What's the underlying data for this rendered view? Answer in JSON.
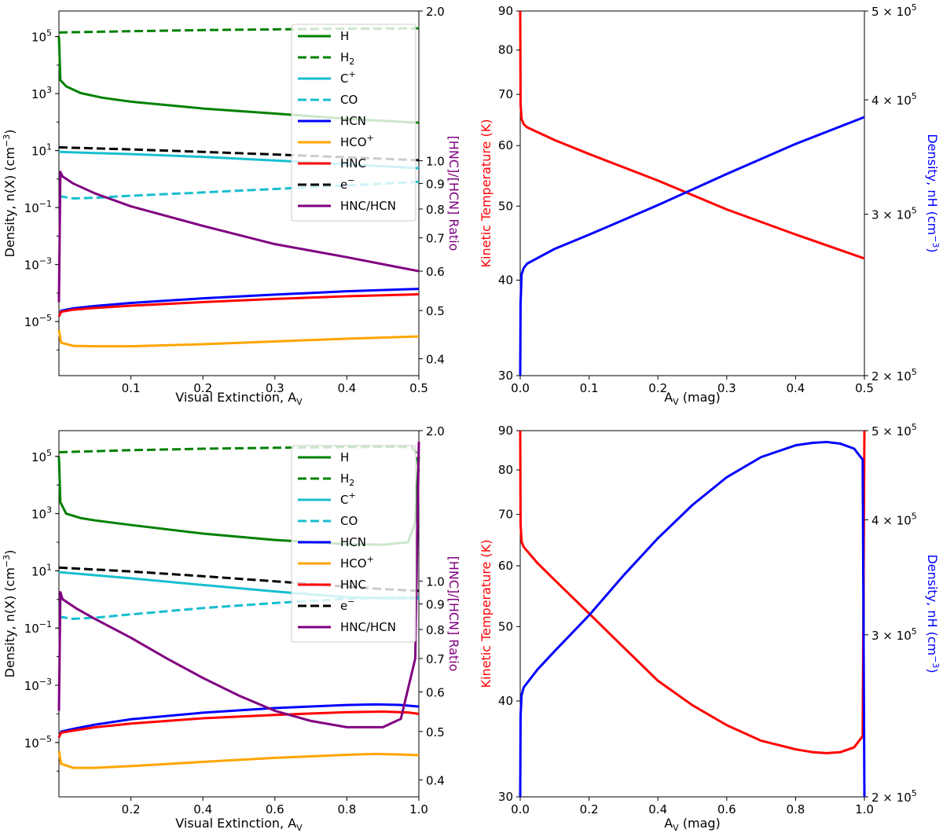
{
  "chart_data": [
    {
      "panel": "top-left",
      "type": "line",
      "xlabel": "Visual Extinction, A",
      "xlabel_sub": "V",
      "ylabel": "Density, n(X) (cm",
      "ylabel_sup": "−3",
      "ylabel_tail": ")",
      "y2label": "[HNC]/[HCN] Ratio",
      "x_scale": "linear",
      "xlim": [
        0,
        0.5
      ],
      "x_ticks": [
        0.1,
        0.2,
        0.3,
        0.4,
        0.5
      ],
      "x_tick_labels": [
        "0.1",
        "0.2",
        "0.3",
        "0.4",
        "0.5"
      ],
      "y_scale": "log",
      "ylim_log10": [
        -6.9,
        5.9
      ],
      "y_ticks": [
        {
          "base": "10",
          "exp": "5",
          "log": 5
        },
        {
          "base": "10",
          "exp": "3",
          "log": 3
        },
        {
          "base": "10",
          "exp": "1",
          "log": 1
        },
        {
          "base": "10",
          "exp": "−1",
          "log": -1
        },
        {
          "base": "10",
          "exp": "−3",
          "log": -3
        },
        {
          "base": "10",
          "exp": "−5",
          "log": -5
        }
      ],
      "y2_scale": "log",
      "y2lim": [
        0.37,
        2.0
      ],
      "y2_ticks": [
        0.4,
        0.5,
        0.6,
        0.7,
        0.8,
        0.9,
        1.0,
        2.0
      ],
      "y2_tick_labels": [
        "0.4",
        "0.5",
        "0.6",
        "0.7",
        "0.8",
        "0.9",
        "1.0",
        "2.0"
      ],
      "legend_position": "top-right",
      "series": [
        {
          "name": "H",
          "label": "H",
          "color": "#008000",
          "style": "solid",
          "axis": "left",
          "x": [
            0,
            0.002,
            0.01,
            0.03,
            0.06,
            0.1,
            0.2,
            0.3,
            0.4,
            0.5
          ],
          "y": [
            100000.0,
            3000,
            1800,
            1050,
            720,
            520,
            300,
            200,
            130,
            95
          ]
        },
        {
          "name": "H2",
          "label": "H",
          "sub": "2",
          "color": "#008000",
          "style": "dashed",
          "axis": "left",
          "x": [
            0,
            0.1,
            0.2,
            0.3,
            0.4,
            0.5
          ],
          "y": [
            140000,
            155000,
            170000,
            180000,
            190000,
            195000
          ]
        },
        {
          "name": "C+",
          "label": "C",
          "sup": "+",
          "color": "#17becf",
          "style": "solid",
          "axis": "left",
          "x": [
            0,
            0.1,
            0.2,
            0.3,
            0.4,
            0.5
          ],
          "y": [
            9,
            7.5,
            6,
            4.5,
            3.3,
            2.4
          ]
        },
        {
          "name": "CO",
          "label": "CO",
          "color": "#17becf",
          "style": "dashed",
          "axis": "left",
          "x": [
            0,
            0.02,
            0.05,
            0.1,
            0.2,
            0.3,
            0.4,
            0.5
          ],
          "y": [
            0.25,
            0.21,
            0.22,
            0.26,
            0.34,
            0.45,
            0.6,
            0.8
          ]
        },
        {
          "name": "HCN",
          "label": "HCN",
          "color": "#0000ff",
          "style": "solid",
          "axis": "left",
          "x": [
            0,
            0.003,
            0.02,
            0.05,
            0.1,
            0.2,
            0.3,
            0.4,
            0.5
          ],
          "y": [
            1.5e-05,
            2.4e-05,
            2.9e-05,
            3.5e-05,
            4.5e-05,
            6.5e-05,
            8.8e-05,
            0.000115,
            0.00014
          ]
        },
        {
          "name": "HCO+",
          "label": "HCO",
          "sup": "+",
          "color": "#ffa500",
          "style": "solid",
          "axis": "left",
          "x": [
            0,
            0.003,
            0.02,
            0.05,
            0.1,
            0.2,
            0.3,
            0.4,
            0.5
          ],
          "y": [
            5e-06,
            1.8e-06,
            1.4e-06,
            1.35e-06,
            1.35e-06,
            1.6e-06,
            2e-06,
            2.5e-06,
            3e-06
          ]
        },
        {
          "name": "HNC",
          "label": "HNC",
          "color": "#ff0000",
          "style": "solid",
          "axis": "left",
          "x": [
            0,
            0.003,
            0.02,
            0.05,
            0.1,
            0.2,
            0.3,
            0.4,
            0.5
          ],
          "y": [
            1.5e-05,
            2.2e-05,
            2.6e-05,
            3e-05,
            3.6e-05,
            4.8e-05,
            6.2e-05,
            7.7e-05,
            9e-05
          ]
        },
        {
          "name": "e-",
          "label": "e",
          "sup": "−",
          "color": "#000000",
          "style": "dashed",
          "axis": "left",
          "x": [
            0,
            0.1,
            0.2,
            0.3,
            0.4,
            0.5
          ],
          "y": [
            13,
            11,
            9,
            7.3,
            5.8,
            4.6
          ]
        },
        {
          "name": "HNC/HCN",
          "label": "HNC/HCN",
          "color": "#800080",
          "style": "solid",
          "axis": "right",
          "x": [
            0,
            0.002,
            0.005,
            0.02,
            0.05,
            0.1,
            0.2,
            0.3,
            0.4,
            0.5
          ],
          "y": [
            0.52,
            0.95,
            0.93,
            0.9,
            0.86,
            0.81,
            0.74,
            0.68,
            0.64,
            0.6
          ]
        }
      ]
    },
    {
      "panel": "top-right",
      "type": "line",
      "xlabel": "A",
      "xlabel_sub": "V",
      "xlabel_tail": " (mag)",
      "ylabel": "Kinetic Temperature (K)",
      "y2label": "Density, nH (cm",
      "y2label_sup": "−3",
      "y2label_tail": ")",
      "x_scale": "linear",
      "xlim": [
        0,
        0.5
      ],
      "x_ticks": [
        0,
        0.1,
        0.2,
        0.3,
        0.4,
        0.5
      ],
      "x_tick_labels": [
        "0.0",
        "0.1",
        "0.2",
        "0.3",
        "0.4",
        "0.5"
      ],
      "y_scale": "log",
      "ylim": [
        30,
        90
      ],
      "y_ticks": [
        30,
        40,
        50,
        60,
        70,
        80,
        90
      ],
      "y_tick_labels": [
        "30",
        "40",
        "50",
        "60",
        "70",
        "80",
        "90"
      ],
      "y2_scale": "log",
      "y2lim": [
        200000,
        500000
      ],
      "y2_ticks": [
        {
          "value": 200000,
          "mant": "2",
          "base": "10",
          "exp": "5"
        },
        {
          "value": 300000,
          "mant": "3",
          "base": "10",
          "exp": "5"
        },
        {
          "value": 400000,
          "mant": "4",
          "base": "10",
          "exp": "5"
        },
        {
          "value": 500000,
          "mant": "5",
          "base": "10",
          "exp": "5"
        }
      ],
      "series": [
        {
          "name": "Kinetic Temperature",
          "color": "#ff0000",
          "style": "solid",
          "axis": "left",
          "x": [
            0,
            0.0005,
            0.002,
            0.005,
            0.01,
            0.05,
            0.1,
            0.2,
            0.3,
            0.4,
            0.5
          ],
          "y": [
            90,
            68,
            65,
            64,
            63.4,
            61,
            58.5,
            54,
            49.5,
            45.9,
            42.7
          ]
        },
        {
          "name": "Density nH",
          "color": "#0000ff",
          "style": "solid",
          "axis": "right",
          "x": [
            0,
            0.0005,
            0.002,
            0.005,
            0.01,
            0.05,
            0.1,
            0.2,
            0.3,
            0.4,
            0.5
          ],
          "y": [
            200000,
            240000,
            258000,
            262000,
            265000,
            275000,
            285000,
            307000,
            332000,
            358000,
            383000
          ]
        }
      ]
    },
    {
      "panel": "bottom-left",
      "type": "line",
      "xlabel": "Visual Extinction, A",
      "xlabel_sub": "V",
      "ylabel": "Density, n(X) (cm",
      "ylabel_sup": "−3",
      "ylabel_tail": ")",
      "y2label": "[HNC]/[HCN] Ratio",
      "x_scale": "linear",
      "xlim": [
        0,
        1.0
      ],
      "x_ticks": [
        0.2,
        0.4,
        0.6,
        0.8,
        1.0
      ],
      "x_tick_labels": [
        "0.2",
        "0.4",
        "0.6",
        "0.8",
        "1.0"
      ],
      "y_scale": "log",
      "ylim_log10": [
        -6.9,
        5.9
      ],
      "y_ticks": [
        {
          "base": "10",
          "exp": "5",
          "log": 5
        },
        {
          "base": "10",
          "exp": "3",
          "log": 3
        },
        {
          "base": "10",
          "exp": "1",
          "log": 1
        },
        {
          "base": "10",
          "exp": "−1",
          "log": -1
        },
        {
          "base": "10",
          "exp": "−3",
          "log": -3
        },
        {
          "base": "10",
          "exp": "−5",
          "log": -5
        }
      ],
      "y2_scale": "log",
      "y2lim": [
        0.37,
        2.0
      ],
      "y2_ticks": [
        0.4,
        0.5,
        0.6,
        0.7,
        0.8,
        0.9,
        1.0,
        2.0
      ],
      "y2_tick_labels": [
        "0.4",
        "0.5",
        "0.6",
        "0.7",
        "0.8",
        "0.9",
        "1.0",
        "2.0"
      ],
      "legend_position": "top-right",
      "series": [
        {
          "name": "H",
          "label": "H",
          "color": "#008000",
          "style": "solid",
          "axis": "left",
          "x": [
            0,
            0.004,
            0.02,
            0.06,
            0.1,
            0.2,
            0.4,
            0.6,
            0.8,
            0.9,
            0.97,
            0.99,
            1.0
          ],
          "y": [
            100000.0,
            2500,
            1000,
            700,
            580,
            400,
            200,
            120,
            85,
            82,
            100,
            500,
            100000
          ]
        },
        {
          "name": "H2",
          "label": "H",
          "sub": "2",
          "color": "#008000",
          "style": "dashed",
          "axis": "left",
          "x": [
            0,
            0.2,
            0.4,
            0.6,
            0.8,
            0.9,
            0.98,
            0.995,
            1.0
          ],
          "y": [
            140000,
            165000,
            185000,
            200000,
            212000,
            215000,
            214000,
            120000,
            30000
          ]
        },
        {
          "name": "C+",
          "label": "C",
          "sup": "+",
          "color": "#17becf",
          "style": "solid",
          "axis": "left",
          "x": [
            0,
            0.2,
            0.4,
            0.6,
            0.8,
            0.9,
            1.0
          ],
          "y": [
            9,
            5.5,
            3.2,
            1.9,
            1.2,
            1.1,
            1.1
          ]
        },
        {
          "name": "CO",
          "label": "CO",
          "color": "#17becf",
          "style": "dashed",
          "axis": "left",
          "x": [
            0,
            0.04,
            0.1,
            0.2,
            0.4,
            0.6,
            0.8,
            0.9,
            1.0
          ],
          "y": [
            0.25,
            0.21,
            0.23,
            0.3,
            0.5,
            0.75,
            1.05,
            1.15,
            1.2
          ]
        },
        {
          "name": "HCN",
          "label": "HCN",
          "color": "#0000ff",
          "style": "solid",
          "axis": "left",
          "x": [
            0,
            0.006,
            0.04,
            0.1,
            0.2,
            0.4,
            0.6,
            0.8,
            0.88,
            0.95,
            1.0
          ],
          "y": [
            1.5e-05,
            2.4e-05,
            3e-05,
            4.2e-05,
            6.5e-05,
            0.00011,
            0.00016,
            0.000205,
            0.000215,
            0.000205,
            0.00018
          ]
        },
        {
          "name": "HCO+",
          "label": "HCO",
          "sup": "+",
          "color": "#ffa500",
          "style": "solid",
          "axis": "left",
          "x": [
            0,
            0.006,
            0.04,
            0.1,
            0.2,
            0.4,
            0.6,
            0.8,
            0.88,
            0.95,
            1.0
          ],
          "y": [
            5e-06,
            1.8e-06,
            1.3e-06,
            1.3e-06,
            1.5e-06,
            2.1e-06,
            2.9e-06,
            3.7e-06,
            4e-06,
            3.8e-06,
            3.6e-06
          ]
        },
        {
          "name": "HNC",
          "label": "HNC",
          "color": "#ff0000",
          "style": "solid",
          "axis": "left",
          "x": [
            0,
            0.006,
            0.04,
            0.1,
            0.2,
            0.4,
            0.6,
            0.8,
            0.9,
            0.97,
            1.0
          ],
          "y": [
            1.5e-05,
            2.2e-05,
            2.6e-05,
            3.4e-05,
            4.6e-05,
            7e-05,
            9.2e-05,
            0.000115,
            0.00012,
            0.000112,
            0.0001
          ]
        },
        {
          "name": "e-",
          "label": "e",
          "sup": "−",
          "color": "#000000",
          "style": "dashed",
          "axis": "left",
          "x": [
            0,
            0.2,
            0.4,
            0.6,
            0.8,
            0.9,
            1.0
          ],
          "y": [
            13,
            9.5,
            6.5,
            4.3,
            2.8,
            2.3,
            2.0
          ]
        },
        {
          "name": "HNC/HCN",
          "label": "HNC/HCN",
          "color": "#800080",
          "style": "solid",
          "axis": "right",
          "x": [
            0,
            0.004,
            0.01,
            0.05,
            0.1,
            0.2,
            0.3,
            0.4,
            0.5,
            0.6,
            0.7,
            0.8,
            0.9,
            0.95,
            0.99,
            1.0
          ],
          "y": [
            0.55,
            0.95,
            0.92,
            0.88,
            0.84,
            0.77,
            0.7,
            0.64,
            0.59,
            0.55,
            0.525,
            0.51,
            0.51,
            0.53,
            0.7,
            1.9
          ]
        }
      ]
    },
    {
      "panel": "bottom-right",
      "type": "line",
      "xlabel": "A",
      "xlabel_sub": "V",
      "xlabel_tail": " (mag)",
      "ylabel": "Kinetic Temperature (K)",
      "y2label": "Density, nH (cm",
      "y2label_sup": "−3",
      "y2label_tail": ")",
      "x_scale": "linear",
      "xlim": [
        0,
        1.0
      ],
      "x_ticks": [
        0,
        0.2,
        0.4,
        0.6,
        0.8,
        1.0
      ],
      "x_tick_labels": [
        "0.0",
        "0.2",
        "0.4",
        "0.6",
        "0.8",
        "1.0"
      ],
      "y_scale": "log",
      "ylim": [
        30,
        90
      ],
      "y_ticks": [
        30,
        40,
        50,
        60,
        70,
        80,
        90
      ],
      "y_tick_labels": [
        "30",
        "40",
        "50",
        "60",
        "70",
        "80",
        "90"
      ],
      "y2_scale": "log",
      "y2lim": [
        200000,
        500000
      ],
      "y2_ticks": [
        {
          "value": 200000,
          "mant": "2",
          "base": "10",
          "exp": "5"
        },
        {
          "value": 300000,
          "mant": "3",
          "base": "10",
          "exp": "5"
        },
        {
          "value": 400000,
          "mant": "4",
          "base": "10",
          "exp": "5"
        },
        {
          "value": 500000,
          "mant": "5",
          "base": "10",
          "exp": "5"
        }
      ],
      "series": [
        {
          "name": "Kinetic Temperature",
          "color": "#ff0000",
          "style": "solid",
          "axis": "left",
          "x": [
            0,
            0.001,
            0.004,
            0.01,
            0.05,
            0.1,
            0.2,
            0.3,
            0.4,
            0.5,
            0.6,
            0.7,
            0.8,
            0.85,
            0.89,
            0.93,
            0.97,
            0.995,
            1.0
          ],
          "y": [
            90,
            68,
            64.5,
            63.5,
            60.5,
            57.5,
            52,
            47,
            42.5,
            39.5,
            37.2,
            35.5,
            34.6,
            34.3,
            34.2,
            34.3,
            34.8,
            36,
            90
          ]
        },
        {
          "name": "Density nH",
          "color": "#0000ff",
          "style": "solid",
          "axis": "right",
          "x": [
            0,
            0.001,
            0.004,
            0.01,
            0.05,
            0.1,
            0.2,
            0.3,
            0.4,
            0.5,
            0.6,
            0.7,
            0.8,
            0.85,
            0.89,
            0.93,
            0.97,
            0.995,
            1.0
          ],
          "y": [
            200000,
            245000,
            258000,
            263000,
            275000,
            288000,
            315000,
            348000,
            382000,
            415000,
            445000,
            468000,
            482000,
            485000,
            486000,
            484000,
            478000,
            465000,
            200000
          ]
        }
      ]
    }
  ]
}
